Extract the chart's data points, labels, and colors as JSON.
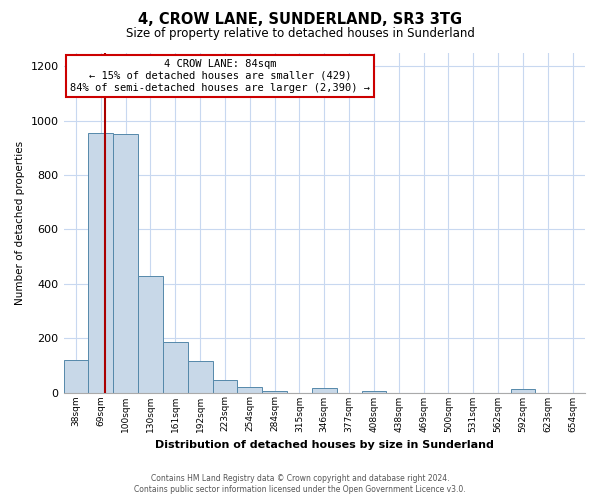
{
  "title": "4, CROW LANE, SUNDERLAND, SR3 3TG",
  "subtitle": "Size of property relative to detached houses in Sunderland",
  "xlabel": "Distribution of detached houses by size in Sunderland",
  "ylabel": "Number of detached properties",
  "footer_line1": "Contains HM Land Registry data © Crown copyright and database right 2024.",
  "footer_line2": "Contains public sector information licensed under the Open Government Licence v3.0.",
  "bar_labels": [
    "38sqm",
    "69sqm",
    "100sqm",
    "130sqm",
    "161sqm",
    "192sqm",
    "223sqm",
    "254sqm",
    "284sqm",
    "315sqm",
    "346sqm",
    "377sqm",
    "408sqm",
    "438sqm",
    "469sqm",
    "500sqm",
    "531sqm",
    "562sqm",
    "592sqm",
    "623sqm",
    "654sqm"
  ],
  "bar_values": [
    120,
    955,
    950,
    430,
    185,
    115,
    47,
    20,
    5,
    0,
    18,
    0,
    5,
    0,
    0,
    0,
    0,
    0,
    12,
    0,
    0
  ],
  "bar_color": "#c8d8e8",
  "bar_edge_color": "#5588aa",
  "red_line_bar_index": 1,
  "red_line_color": "#aa0000",
  "annotation_title": "4 CROW LANE: 84sqm",
  "annotation_line1": "← 15% of detached houses are smaller (429)",
  "annotation_line2": "84% of semi-detached houses are larger (2,390) →",
  "annotation_box_color": "#ffffff",
  "annotation_box_edge": "#cc0000",
  "ylim": [
    0,
    1250
  ],
  "yticks": [
    0,
    200,
    400,
    600,
    800,
    1000,
    1200
  ],
  "background_color": "#ffffff",
  "grid_color": "#c8d8f0"
}
